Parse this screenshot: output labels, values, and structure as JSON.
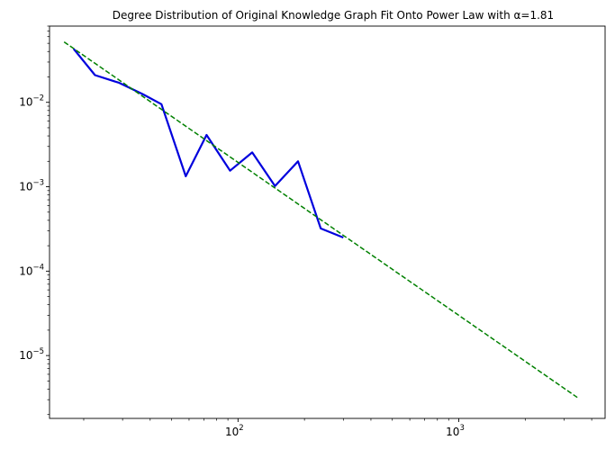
{
  "chart_data": {
    "type": "line",
    "title": "Degree Distribution of Original Knowledge Graph Fit Onto Power Law with α=1.81",
    "xlabel": "",
    "ylabel": "",
    "xscale": "log",
    "yscale": "log",
    "xlim": [
      14,
      4600
    ],
    "ylim": [
      1.8e-06,
      0.08
    ],
    "grid": false,
    "legend": "none",
    "x_ticks": [
      {
        "value": 100,
        "base": "10",
        "exp": "2"
      },
      {
        "value": 1000,
        "base": "10",
        "exp": "3"
      }
    ],
    "y_ticks": [
      {
        "value": 0.01,
        "base": "10",
        "exp": "−2"
      },
      {
        "value": 0.001,
        "base": "10",
        "exp": "−3"
      },
      {
        "value": 0.0001,
        "base": "10",
        "exp": "−4"
      },
      {
        "value": 1e-05,
        "base": "10",
        "exp": "−5"
      }
    ],
    "series": [
      {
        "style": "solid",
        "color": "#0000dd",
        "x": [
          18,
          22.5,
          29,
          37,
          45,
          58,
          72,
          92,
          116,
          147,
          187,
          237,
          300
        ],
        "y": [
          0.043,
          0.021,
          0.017,
          0.0125,
          0.0095,
          0.00133,
          0.0041,
          0.00155,
          0.00255,
          0.00102,
          0.002,
          0.00032,
          0.00025
        ]
      },
      {
        "style": "dashed",
        "color": "#008000",
        "x": [
          16.3,
          3500
        ],
        "y": [
          0.052,
          3.1e-06
        ]
      }
    ]
  }
}
